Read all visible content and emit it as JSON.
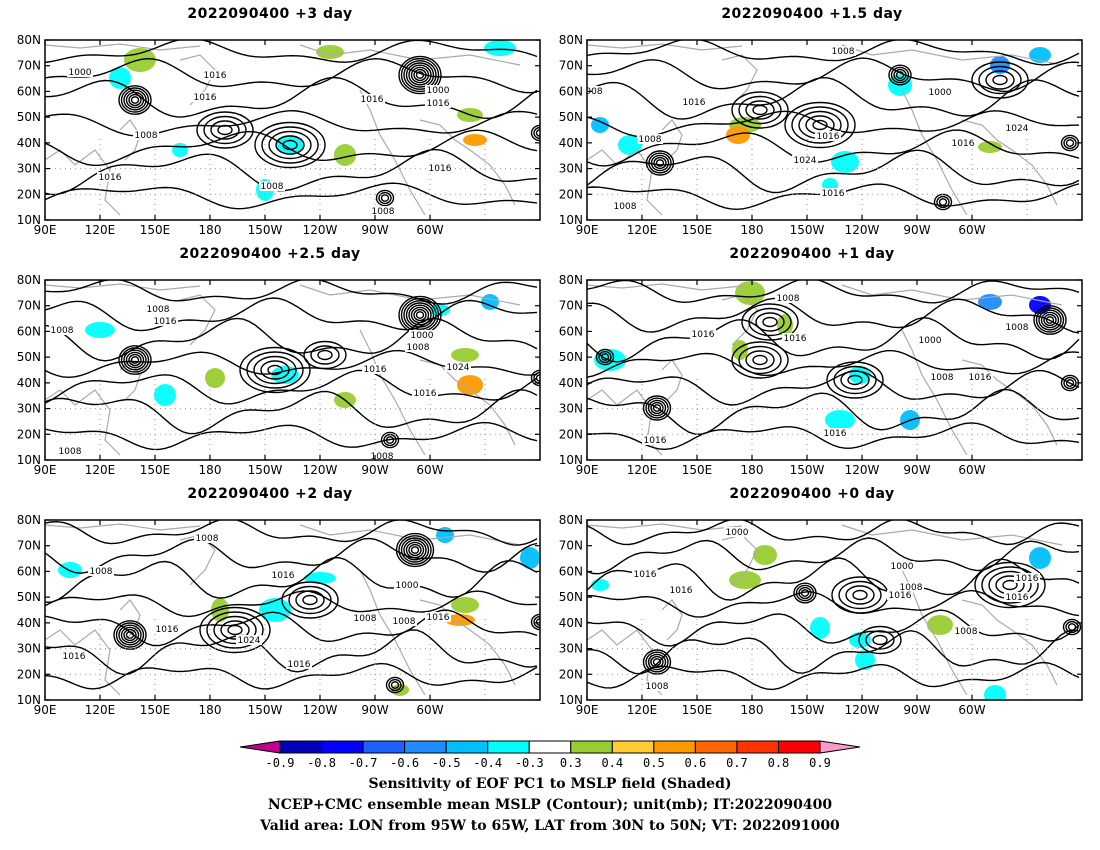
{
  "panels": [
    {
      "title": "2022090400 +3 day",
      "labels": [
        "1000",
        "1016",
        "1016",
        "1000",
        "1008",
        "1016",
        "1008",
        "1016",
        "1016",
        "1016",
        "1008"
      ]
    },
    {
      "title": "2022090400 +1.5 day",
      "labels": [
        "008",
        "1008",
        "1016",
        "1008",
        "1016",
        "1000",
        "1024",
        "1016",
        "1024",
        "1016",
        "1008"
      ]
    },
    {
      "title": "2022090400 +2.5 day",
      "labels": [
        "1008",
        "1008",
        "1016",
        "1000",
        "1008",
        "1016",
        "1024",
        "1016",
        "1008",
        "1008"
      ]
    },
    {
      "title": "2022090400 +1 day",
      "labels": [
        "1008",
        "1016",
        "1016",
        "1016",
        "1000",
        "1008",
        "1016",
        "1016",
        "1008"
      ]
    },
    {
      "title": "2022090400 +2 day",
      "labels": [
        "1008",
        "1008",
        "1016",
        "1016",
        "1016",
        "1024",
        "1016",
        "1008",
        "1000",
        "1008",
        "1016"
      ]
    },
    {
      "title": "2022090400 +0 day",
      "labels": [
        "1000",
        "1016",
        "1016",
        "1000",
        "1008",
        "1016",
        "1008",
        "1016",
        "1016",
        "1008"
      ]
    }
  ],
  "axes": {
    "lat_labels": [
      "80N",
      "70N",
      "60N",
      "50N",
      "40N",
      "30N",
      "20N",
      "10N"
    ],
    "lon_labels": [
      "90E",
      "120E",
      "150E",
      "180",
      "150W",
      "120W",
      "90W",
      "60W"
    ]
  },
  "colorbar": {
    "labels": [
      "-0.9",
      "-0.8",
      "-0.7",
      "-0.6",
      "-0.5",
      "-0.4",
      "-0.3",
      "0.3",
      "0.4",
      "0.5",
      "0.6",
      "0.7",
      "0.8",
      "0.9"
    ],
    "colors": [
      "#c0008f",
      "#0000b8",
      "#0000ff",
      "#1e5fff",
      "#1e8cff",
      "#00bfff",
      "#00ffff",
      "#ffffff",
      "#99cc33",
      "#ffcc33",
      "#ff9900",
      "#ff6600",
      "#ff3300",
      "#ff0000",
      "#ff99cc"
    ]
  },
  "captions": {
    "line1": "Sensitivity of EOF PC1 to MSLP field (Shaded)",
    "line2": "NCEP+CMC ensemble mean MSLP (Contour); unit(mb); IT:2022090400",
    "line3": "Valid area: LON from 95W to 65W, LAT from 30N to 50N; VT: 2022091000"
  }
}
